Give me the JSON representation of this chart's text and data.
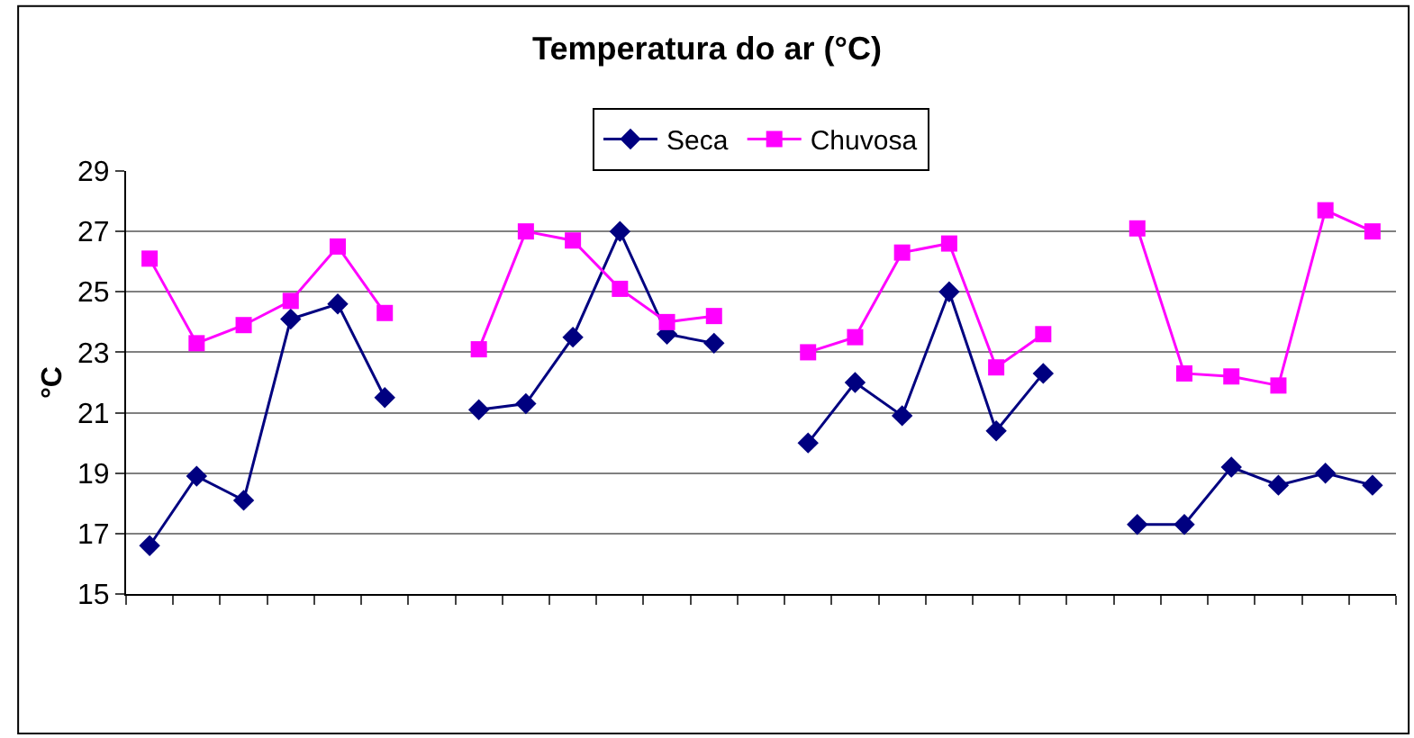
{
  "chart_data": {
    "type": "line",
    "title": "Temperatura do ar (°C)",
    "ylabel": "°C",
    "categories": [
      null,
      null,
      null,
      null,
      null,
      null,
      null,
      null,
      null,
      null,
      null,
      null,
      null,
      null,
      null,
      null,
      null,
      null,
      null,
      null,
      null,
      null,
      null,
      null,
      null,
      null,
      null
    ],
    "series": [
      {
        "name": "Seca",
        "color": "#000080",
        "marker": "diamond",
        "values": [
          16.6,
          18.9,
          18.1,
          24.1,
          24.6,
          21.5,
          null,
          21.1,
          21.3,
          23.5,
          27.0,
          23.6,
          23.3,
          null,
          20.0,
          22.0,
          20.9,
          25.0,
          20.4,
          22.3,
          null,
          17.3,
          17.3,
          19.2,
          18.6,
          19.0,
          18.6
        ]
      },
      {
        "name": "Chuvosa",
        "color": "#ff00ff",
        "marker": "square",
        "values": [
          26.1,
          23.3,
          23.9,
          24.7,
          26.5,
          24.3,
          null,
          23.1,
          27.0,
          26.7,
          25.1,
          24.0,
          24.2,
          null,
          23.0,
          23.5,
          26.3,
          26.6,
          22.5,
          23.6,
          null,
          27.1,
          22.3,
          22.2,
          21.9,
          27.7,
          27.0
        ]
      }
    ],
    "ylim": [
      15,
      29
    ],
    "yticks": [
      15,
      17,
      19,
      21,
      23,
      25,
      27,
      29
    ],
    "grid": "y",
    "legend": "top",
    "tick_labels": "y"
  }
}
